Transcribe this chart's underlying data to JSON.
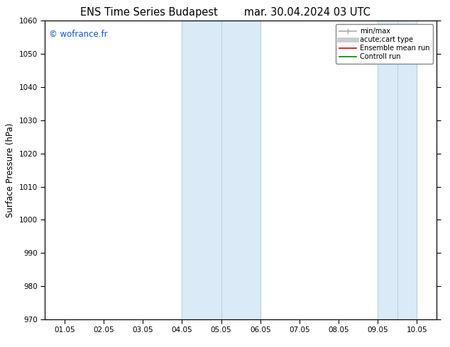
{
  "title_left": "ENS Time Series Budapest",
  "title_right": "mar. 30.04.2024 03 UTC",
  "ylabel": "Surface Pressure (hPa)",
  "ylim": [
    970,
    1060
  ],
  "yticks": [
    970,
    980,
    990,
    1000,
    1010,
    1020,
    1030,
    1040,
    1050,
    1060
  ],
  "xtick_labels": [
    "01.05",
    "02.05",
    "03.05",
    "04.05",
    "05.05",
    "06.05",
    "07.05",
    "08.05",
    "09.05",
    "10.05"
  ],
  "xtick_positions": [
    1,
    2,
    3,
    4,
    5,
    6,
    7,
    8,
    9,
    10
  ],
  "xlim": [
    0.5,
    10.5
  ],
  "shade_bands": [
    {
      "xmin": 4.0,
      "xmax": 6.0,
      "dividers": [
        5.0
      ]
    }
  ],
  "shade_bands2": [
    {
      "xmin": 9.0,
      "xmax": 10.0,
      "dividers": [
        9.5
      ]
    }
  ],
  "shade_color": "#daeaf7",
  "band_edge_color": "#b8d4e8",
  "watermark": "© wofrance.fr",
  "watermark_color": "#1155cc",
  "background_color": "#ffffff",
  "legend_items": [
    {
      "label": "min/max",
      "color": "#aaaaaa",
      "lw": 1.2
    },
    {
      "label": "acute;cart type",
      "color": "#cccccc",
      "lw": 5
    },
    {
      "label": "Ensemble mean run",
      "color": "#dd0000",
      "lw": 1.2
    },
    {
      "label": "Controll run",
      "color": "#008800",
      "lw": 1.2
    }
  ],
  "title_fontsize": 10.5,
  "tick_label_fontsize": 7.5,
  "axis_label_fontsize": 8.5,
  "watermark_fontsize": 8.5
}
